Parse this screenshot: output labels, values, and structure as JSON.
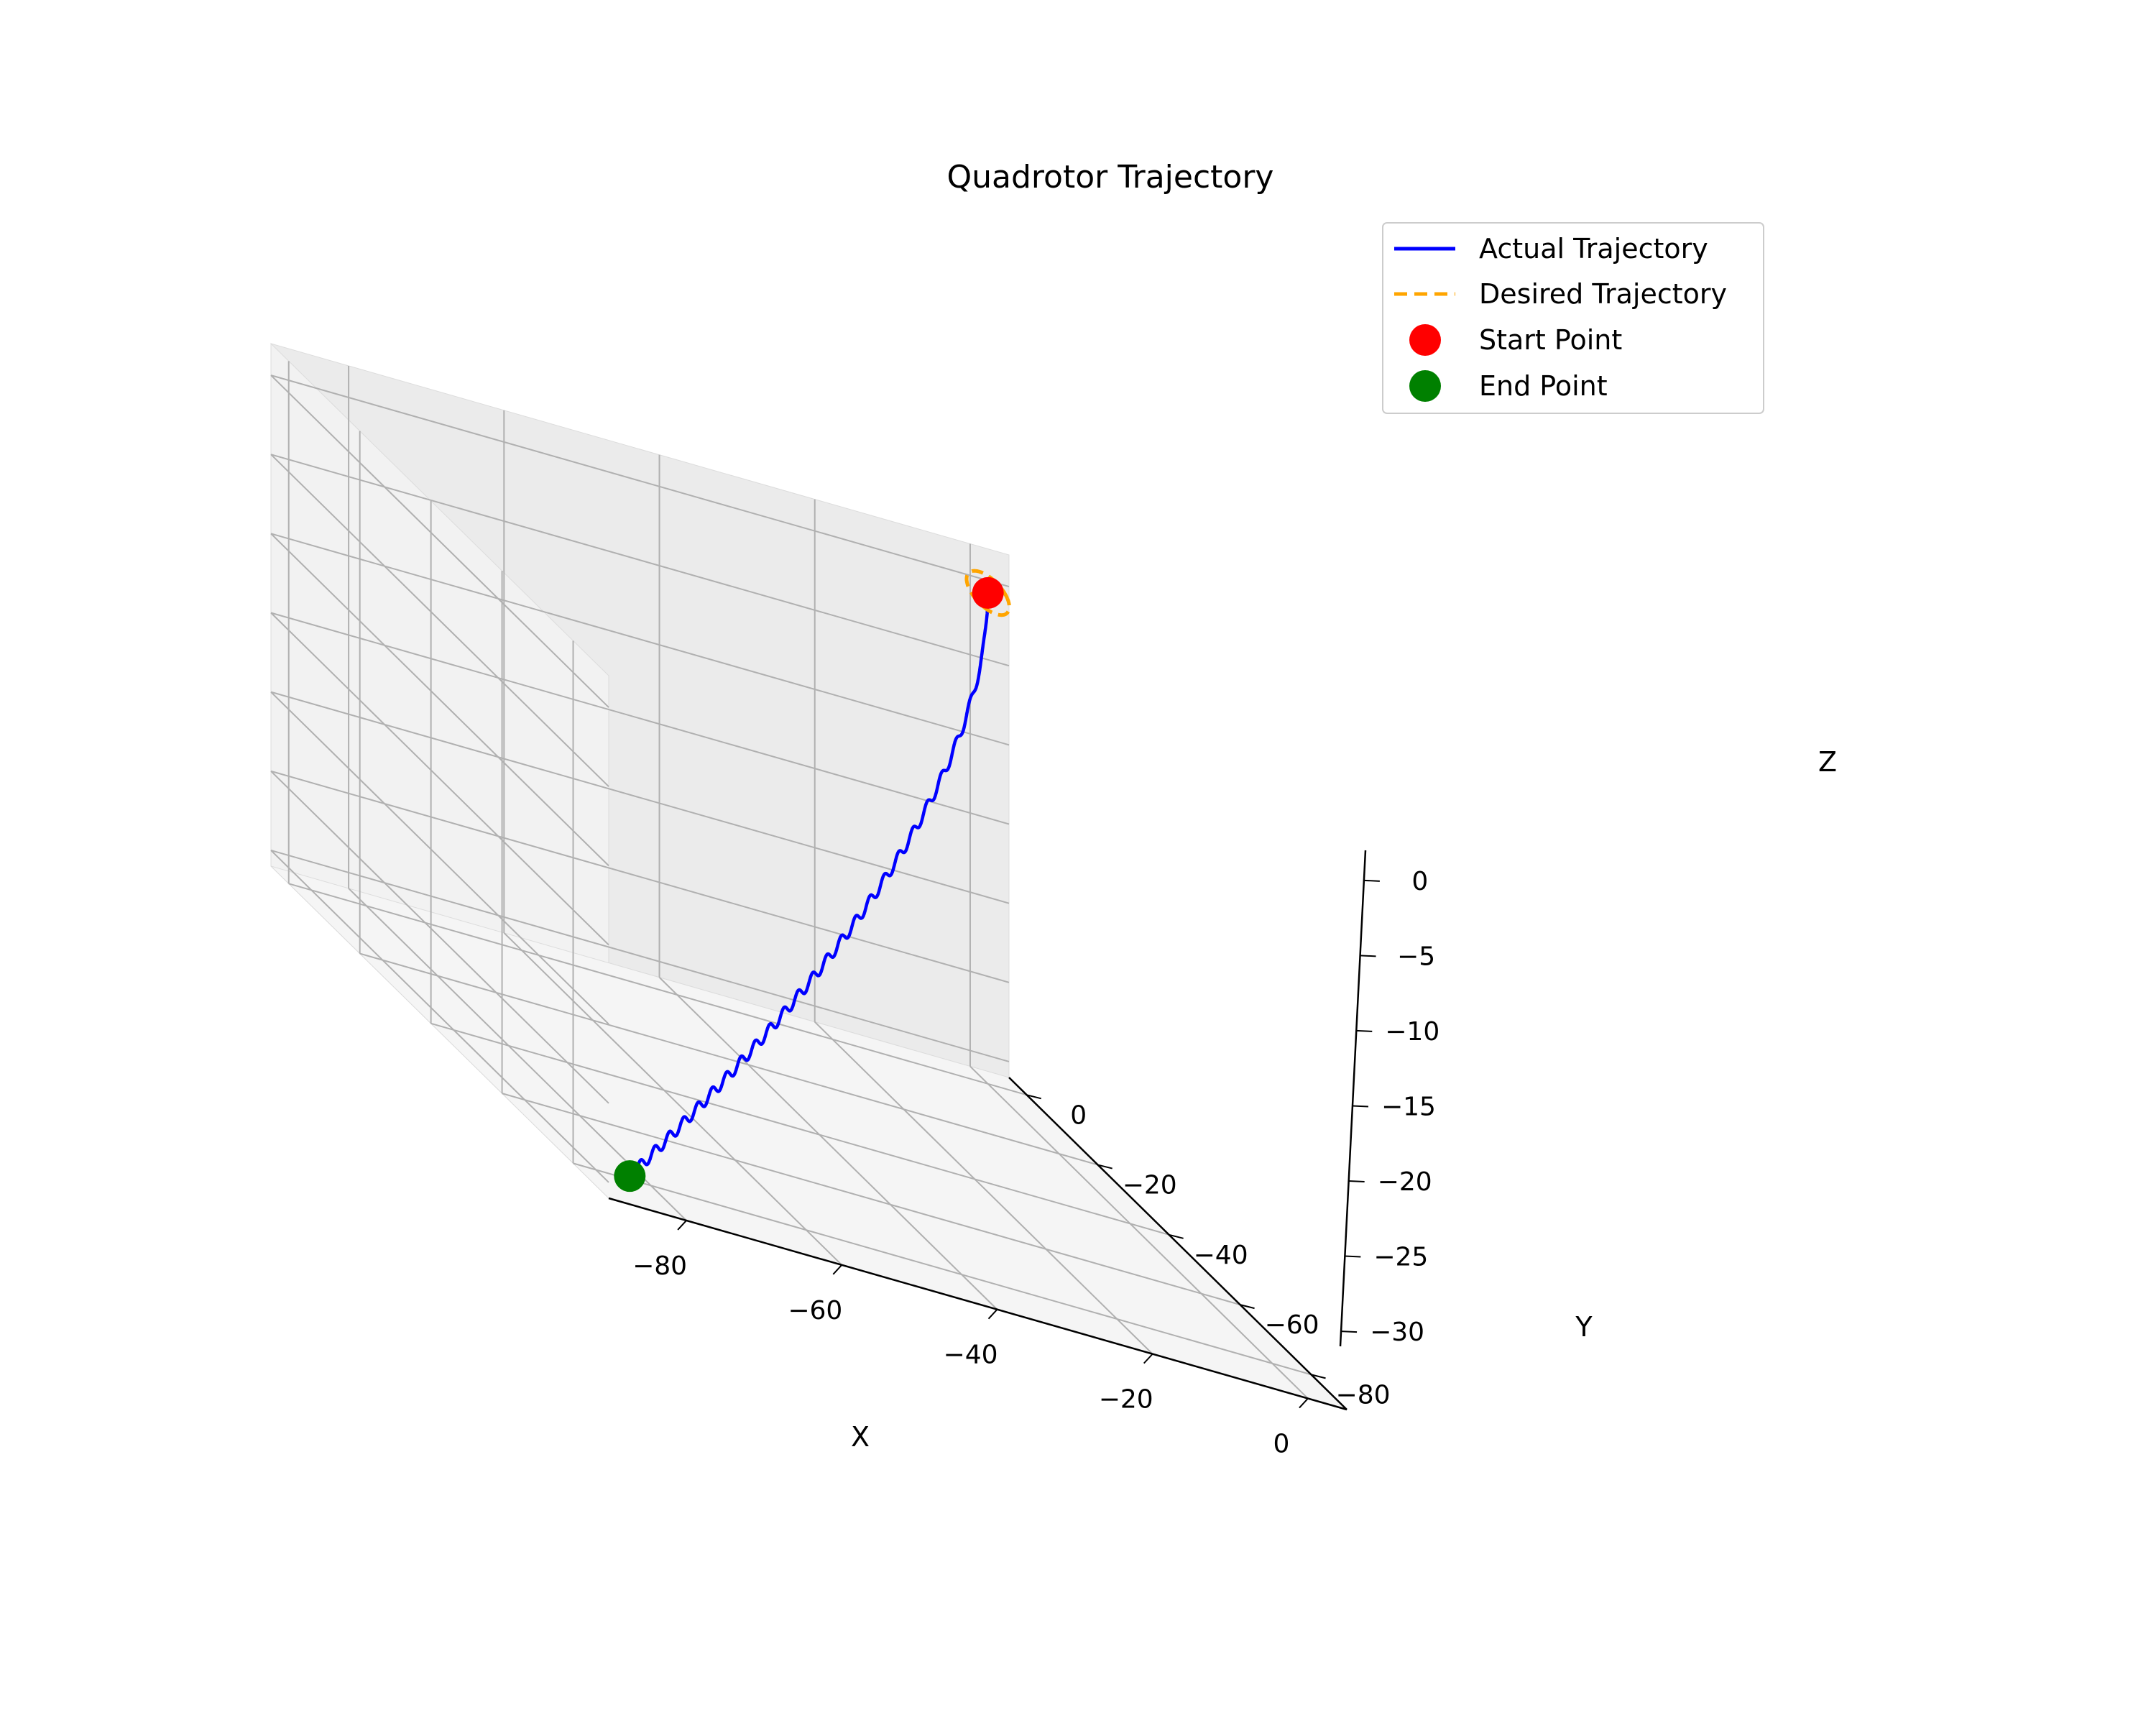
{
  "chart_data": {
    "type": "line3d",
    "title": "Quadrotor Trajectory",
    "xlabel": "X",
    "ylabel": "Y",
    "zlabel": "Z",
    "xlim": [
      -90,
      5
    ],
    "ylim": [
      -90,
      5
    ],
    "zlim": [
      -31,
      2
    ],
    "x_ticks": [
      -80,
      -60,
      -40,
      -20,
      0
    ],
    "y_ticks": [
      0,
      -20,
      -40,
      -60,
      -80
    ],
    "z_ticks": [
      0,
      -5,
      -10,
      -15,
      -20,
      -25,
      -30
    ],
    "x_tick_labels": [
      "−80",
      "−60",
      "−40",
      "−20",
      "0"
    ],
    "y_tick_labels": [
      "0",
      "−20",
      "−40",
      "−60",
      "−80"
    ],
    "z_tick_labels": [
      "0",
      "−5",
      "−10",
      "−15",
      "−20",
      "−25",
      "−30"
    ],
    "grid": true,
    "legend_position": "upper-right",
    "series": [
      {
        "name": "Actual Trajectory",
        "style": "solid",
        "color": "#0000ff",
        "start": [
          0,
          0,
          0
        ],
        "end": [
          -85,
          -85,
          -30
        ],
        "wobble_cycles": 25
      },
      {
        "name": "Desired Trajectory",
        "style": "dashed",
        "color": "#ffa500",
        "shape": "circle",
        "center": [
          0,
          0,
          0
        ],
        "radius": 1.0
      }
    ],
    "points": [
      {
        "name": "Start Point",
        "color": "#ff0000",
        "xyz": [
          0,
          0,
          0
        ]
      },
      {
        "name": "End Point",
        "color": "#008000",
        "xyz": [
          -85,
          -85,
          -30
        ]
      }
    ]
  }
}
